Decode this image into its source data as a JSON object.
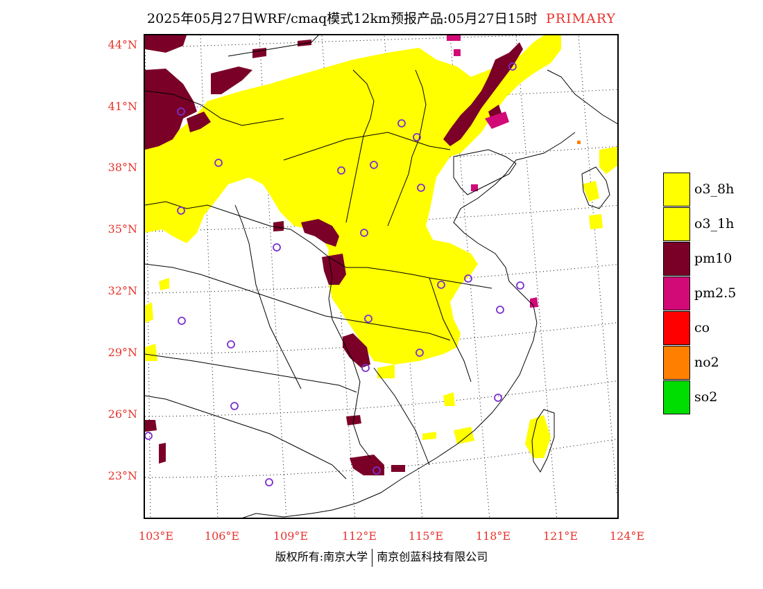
{
  "header": {
    "title": "2025年05月27日WRF/cmaq模式12km预报产品:05月27日15时",
    "pollutant_label": "PRIMARY",
    "pollutant_color": "#e8322b"
  },
  "map": {
    "lat_labels": [
      "44°N",
      "41°N",
      "38°N",
      "35°N",
      "32°N",
      "29°N",
      "26°N",
      "23°N"
    ],
    "lon_labels": [
      "103°E",
      "106°E",
      "109°E",
      "112°E",
      "115°E",
      "118°E",
      "121°E",
      "124°E"
    ],
    "label_color": "#e8322b",
    "background_color": "#ffffff",
    "graticule": "dotted",
    "station_marker": "purple-circle",
    "station_marker_color": "#7b2fd0",
    "station_count": 31
  },
  "legend": {
    "items": [
      {
        "label": "o3_8h",
        "color": "#ffff00"
      },
      {
        "label": "o3_1h",
        "color": "#ffff00"
      },
      {
        "label": "pm10",
        "color": "#7a0028"
      },
      {
        "label": "pm2.5",
        "color": "#d20a78"
      },
      {
        "label": "co",
        "color": "#ff0000"
      },
      {
        "label": "no2",
        "color": "#ff8000"
      },
      {
        "label": "so2",
        "color": "#00dd00"
      }
    ]
  },
  "footer": {
    "copyright": "版权所有:南京大学",
    "company": "南京创蓝科技有限公司"
  }
}
